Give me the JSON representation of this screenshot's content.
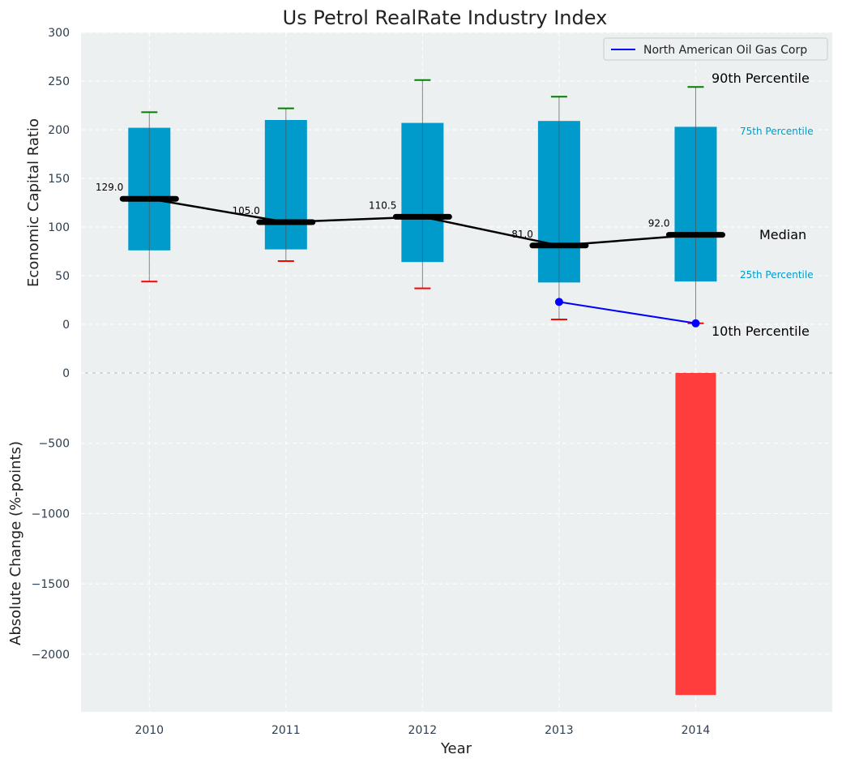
{
  "chart_data": [
    {
      "type": "bar",
      "title": "Us Petrol RealRate Industry Index",
      "xlabel": "",
      "ylabel": "Economic Capital Ratio",
      "ylim": [
        -50,
        300
      ],
      "xlim": [
        2009.5,
        2015
      ],
      "yticks": [
        0,
        50,
        100,
        150,
        200,
        250,
        300
      ],
      "grid": true,
      "legend": {
        "position": "top-right",
        "entries": [
          "North American Oil Gas Corp"
        ]
      },
      "categories": [
        2010,
        2011,
        2012,
        2013,
        2014
      ],
      "p10": [
        44,
        65,
        37,
        5,
        1
      ],
      "p25": [
        76,
        77,
        64,
        43,
        44
      ],
      "median": [
        129.0,
        105.0,
        110.5,
        81.0,
        92.0
      ],
      "median_labels": [
        "129.0",
        "105.0",
        "110.5",
        "81.0",
        "92.0"
      ],
      "p75": [
        202,
        210,
        207,
        209,
        203
      ],
      "p90": [
        218,
        222,
        251,
        234,
        244
      ],
      "company_series": {
        "name": "North American Oil Gas Corp",
        "x": [
          2013,
          2014
        ],
        "values": [
          23,
          1
        ]
      },
      "annotations": {
        "p90": "90th Percentile",
        "p75": "75th Percentile",
        "median": "Median",
        "p25": "25th Percentile",
        "p10": "10th Percentile"
      },
      "colors": {
        "box": "#009bcb",
        "p90": "#008000",
        "p10": "#ff0000",
        "company": "#0000ff",
        "median": "#000000"
      }
    },
    {
      "type": "bar",
      "xlabel": "Year",
      "ylabel": "Absolute Change (%-points)",
      "ylim": [
        -2410,
        0
      ],
      "yticks": [
        0,
        -500,
        -1000,
        -1500,
        -2000
      ],
      "ytick_labels": [
        "0",
        "−500",
        "−1000",
        "−1500",
        "−2000"
      ],
      "categories": [
        2010,
        2011,
        2012,
        2013,
        2014
      ],
      "values": [
        0,
        0,
        0,
        0,
        -2290
      ],
      "colors": {
        "negative": "#ff3d3d"
      }
    }
  ]
}
